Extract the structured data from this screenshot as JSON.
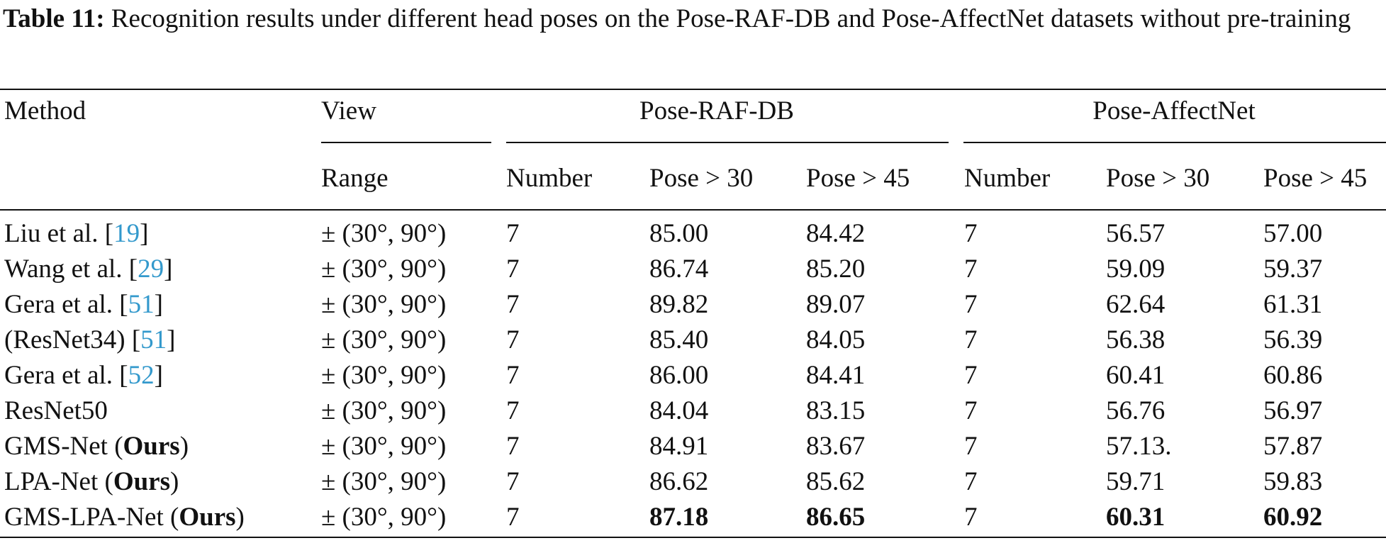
{
  "caption": {
    "label": "Table 11:",
    "text": "Recognition results under different head poses on the Pose-RAF-DB and Pose-AffectNet datasets without pre-training"
  },
  "table": {
    "header_top": [
      "Method",
      "View",
      "Pose-RAF-DB",
      "Pose-AffectNet"
    ],
    "header_sub": [
      "Range",
      "Number",
      "Pose > 30",
      "Pose > 45",
      "Number",
      "Pose > 30",
      "Pose > 45"
    ],
    "rows": [
      [
        {
          "parts": [
            {
              "text": "Liu et al. ["
            },
            {
              "text": "19",
              "style": "link"
            },
            {
              "text": "]"
            }
          ]
        },
        "± (30°, 90°)",
        "7",
        "85.00",
        "84.42",
        "7",
        "56.57",
        "57.00"
      ],
      [
        {
          "parts": [
            {
              "text": "Wang et al. ["
            },
            {
              "text": "29",
              "style": "link"
            },
            {
              "text": "]"
            }
          ]
        },
        "± (30°, 90°)",
        "7",
        "86.74",
        "85.20",
        "7",
        "59.09",
        "59.37"
      ],
      [
        {
          "parts": [
            {
              "text": "Gera et al. ["
            },
            {
              "text": "51",
              "style": "link"
            },
            {
              "text": "]"
            }
          ]
        },
        "± (30°, 90°)",
        "7",
        "89.82",
        "89.07",
        "7",
        "62.64",
        "61.31"
      ],
      [
        {
          "parts": [
            {
              "text": "(ResNet34) ["
            },
            {
              "text": "51",
              "style": "link"
            },
            {
              "text": "]"
            }
          ]
        },
        "± (30°, 90°)",
        "7",
        "85.40",
        "84.05",
        "7",
        "56.38",
        "56.39"
      ],
      [
        {
          "parts": [
            {
              "text": "Gera et al. ["
            },
            {
              "text": "52",
              "style": "link"
            },
            {
              "text": "]"
            }
          ]
        },
        "± (30°, 90°)",
        "7",
        "86.00",
        "84.41",
        "7",
        "60.41",
        "60.86"
      ],
      [
        "ResNet50",
        "± (30°, 90°)",
        "7",
        "84.04",
        "83.15",
        "7",
        "56.76",
        "56.97"
      ],
      [
        {
          "parts": [
            {
              "text": "GMS-Net ("
            },
            {
              "text": "Ours",
              "style": "bold"
            },
            {
              "text": ")"
            }
          ]
        },
        "± (30°, 90°)",
        "7",
        "84.91",
        "83.67",
        "7",
        "57.13.",
        "57.87"
      ],
      [
        {
          "parts": [
            {
              "text": "LPA-Net ("
            },
            {
              "text": "Ours",
              "style": "bold"
            },
            {
              "text": ")"
            }
          ]
        },
        "± (30°, 90°)",
        "7",
        "86.62",
        "85.62",
        "7",
        "59.71",
        "59.83"
      ],
      [
        {
          "parts": [
            {
              "text": "GMS-LPA-Net ("
            },
            {
              "text": "Ours",
              "style": "bold"
            },
            {
              "text": ")"
            }
          ]
        },
        "± (30°, 90°)",
        "7",
        {
          "text": "87.18",
          "style": "bold"
        },
        {
          "text": "86.65",
          "style": "bold"
        },
        "7",
        {
          "text": "60.31",
          "style": "bold"
        },
        {
          "text": "60.92",
          "style": "bold"
        }
      ]
    ]
  }
}
